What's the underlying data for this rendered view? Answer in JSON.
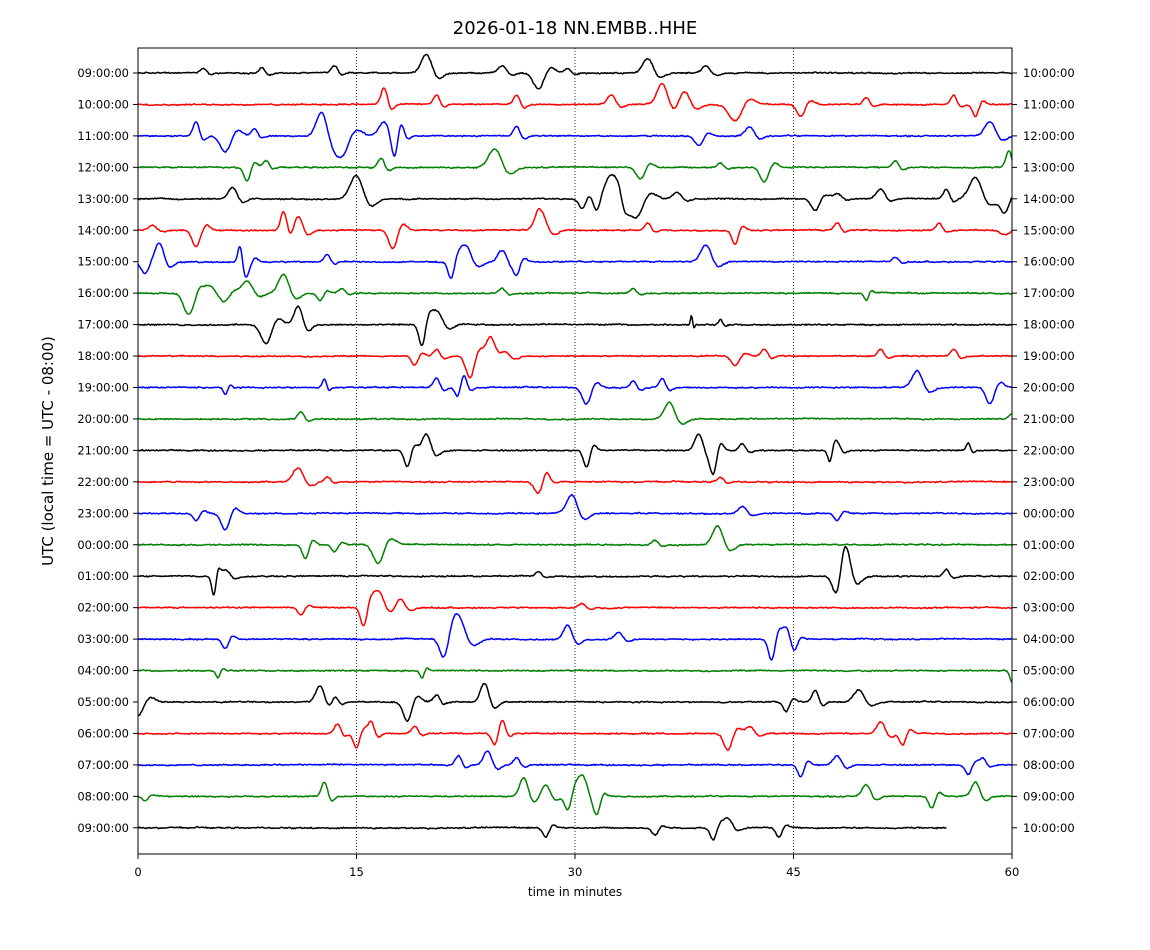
{
  "chart_data": {
    "type": "line",
    "title": "2026-01-18 NN.EMBB..HHE",
    "xlabel": "time in minutes",
    "ylabel": "UTC (local time = UTC - 08:00)",
    "xlim": [
      0,
      60
    ],
    "x_ticks": [
      "0",
      "15",
      "30",
      "45",
      "60"
    ],
    "x_tick_values": [
      0,
      15,
      30,
      45,
      60
    ],
    "vertical_gridlines_at_minutes": [
      15,
      30,
      45
    ],
    "grid": "dotted vertical lines at 15, 30, 45 minutes",
    "colors": [
      "#000000",
      "#ff0000",
      "#0000ff",
      "#008000"
    ],
    "left_labels": [
      "09:00:00",
      "10:00:00",
      "11:00:00",
      "12:00:00",
      "13:00:00",
      "14:00:00",
      "15:00:00",
      "16:00:00",
      "17:00:00",
      "18:00:00",
      "19:00:00",
      "20:00:00",
      "21:00:00",
      "22:00:00",
      "23:00:00",
      "00:00:00",
      "01:00:00",
      "02:00:00",
      "03:00:00",
      "04:00:00",
      "05:00:00",
      "06:00:00",
      "07:00:00",
      "08:00:00",
      "09:00:00"
    ],
    "right_labels": [
      "10:00:00",
      "11:00:00",
      "12:00:00",
      "13:00:00",
      "14:00:00",
      "15:00:00",
      "16:00:00",
      "17:00:00",
      "18:00:00",
      "19:00:00",
      "20:00:00",
      "21:00:00",
      "22:00:00",
      "23:00:00",
      "00:00:00",
      "01:00:00",
      "02:00:00",
      "03:00:00",
      "04:00:00",
      "05:00:00",
      "06:00:00",
      "07:00:00",
      "08:00:00",
      "09:00:00",
      "10:00:00"
    ],
    "last_trace_end_minute": 55.5,
    "events_description": "per-trace notable deflections as [minute, relative amplitude (+ up), width in minutes]",
    "trace_events": [
      [
        [
          4.5,
          0.2,
          0.3
        ],
        [
          8.5,
          0.25,
          0.3
        ],
        [
          13.5,
          0.3,
          0.3
        ],
        [
          19.8,
          0.8,
          0.5
        ],
        [
          25,
          0.3,
          0.4
        ],
        [
          27.5,
          -0.7,
          0.5
        ],
        [
          29.5,
          0.2,
          0.3
        ],
        [
          35,
          0.6,
          0.5
        ],
        [
          39,
          0.3,
          0.4
        ]
      ],
      [
        [
          16.9,
          0.7,
          0.3
        ],
        [
          20.5,
          0.4,
          0.3
        ],
        [
          26,
          0.4,
          0.3
        ],
        [
          32.5,
          0.4,
          0.4
        ],
        [
          36,
          0.9,
          0.5
        ],
        [
          37.5,
          0.6,
          0.5
        ],
        [
          41,
          -0.7,
          0.6
        ],
        [
          45.5,
          -0.5,
          0.4
        ],
        [
          50,
          0.3,
          0.3
        ],
        [
          56,
          0.4,
          0.3
        ],
        [
          57.5,
          -0.5,
          0.3
        ]
      ],
      [
        [
          4,
          0.6,
          0.3
        ],
        [
          6,
          -0.7,
          0.5
        ],
        [
          8,
          0.3,
          0.3
        ],
        [
          12.6,
          1.0,
          0.5
        ],
        [
          14,
          -0.8,
          0.6
        ],
        [
          16.9,
          0.6,
          0.5
        ],
        [
          17.6,
          -0.8,
          0.3
        ],
        [
          18,
          0.4,
          0.3
        ],
        [
          26,
          0.4,
          0.3
        ],
        [
          38.5,
          -0.4,
          0.4
        ],
        [
          42,
          0.4,
          0.4
        ],
        [
          58.5,
          0.6,
          0.5
        ]
      ],
      [
        [
          7.5,
          -0.6,
          0.3
        ],
        [
          8.8,
          0.3,
          0.3
        ],
        [
          16.7,
          0.4,
          0.3
        ],
        [
          24.5,
          0.8,
          0.6
        ],
        [
          34.5,
          -0.5,
          0.4
        ],
        [
          40,
          0.2,
          0.3
        ],
        [
          43,
          -0.6,
          0.4
        ],
        [
          52,
          0.3,
          0.3
        ],
        [
          59.8,
          0.7,
          0.3
        ]
      ],
      [
        [
          6.5,
          0.5,
          0.4
        ],
        [
          15,
          1.0,
          0.6
        ],
        [
          30.5,
          -0.4,
          0.3
        ],
        [
          31.5,
          -0.5,
          0.3
        ],
        [
          32.5,
          1.0,
          0.5
        ],
        [
          33,
          0.5,
          0.3
        ],
        [
          34.2,
          -0.8,
          0.6
        ],
        [
          37,
          0.3,
          0.4
        ],
        [
          46.5,
          -0.5,
          0.4
        ],
        [
          48,
          0.2,
          0.4
        ],
        [
          51,
          0.4,
          0.4
        ],
        [
          55.5,
          0.4,
          0.3
        ],
        [
          57.5,
          0.9,
          0.6
        ],
        [
          59.5,
          -0.6,
          0.4
        ]
      ],
      [
        [
          1,
          0.2,
          0.4
        ],
        [
          4,
          -0.7,
          0.4
        ],
        [
          10,
          0.8,
          0.3
        ],
        [
          11,
          0.6,
          0.4
        ],
        [
          17.5,
          -0.8,
          0.4
        ],
        [
          27.5,
          0.8,
          0.4
        ],
        [
          28,
          0.5,
          0.4
        ],
        [
          35,
          0.3,
          0.3
        ],
        [
          41,
          -0.6,
          0.3
        ],
        [
          48,
          0.3,
          0.3
        ],
        [
          55,
          0.3,
          0.3
        ],
        [
          59.5,
          -0.2,
          0.5
        ]
      ],
      [
        [
          0.5,
          -0.5,
          0.4
        ],
        [
          1.5,
          0.7,
          0.4
        ],
        [
          7,
          0.7,
          0.2
        ],
        [
          7.5,
          -0.5,
          0.3
        ],
        [
          13,
          0.3,
          0.3
        ],
        [
          21.5,
          -0.7,
          0.3
        ],
        [
          22.5,
          0.7,
          0.5
        ],
        [
          25,
          0.5,
          0.4
        ],
        [
          26,
          -0.5,
          0.3
        ],
        [
          39,
          0.7,
          0.5
        ],
        [
          52,
          0.2,
          0.3
        ]
      ],
      [
        [
          3.5,
          -0.9,
          0.5
        ],
        [
          5,
          0.3,
          0.4
        ],
        [
          6,
          -0.3,
          0.4
        ],
        [
          7.5,
          0.5,
          0.5
        ],
        [
          10,
          0.8,
          0.5
        ],
        [
          12.5,
          -0.3,
          0.3
        ],
        [
          14,
          0.2,
          0.3
        ],
        [
          25,
          0.2,
          0.3
        ],
        [
          34,
          0.2,
          0.3
        ],
        [
          50,
          -0.3,
          0.2
        ]
      ],
      [
        [
          8.8,
          -0.8,
          0.5
        ],
        [
          11,
          0.8,
          0.4
        ],
        [
          19.5,
          -0.9,
          0.3
        ],
        [
          20.5,
          0.6,
          0.5
        ],
        [
          38,
          0.4,
          0.1
        ],
        [
          40,
          0.2,
          0.2
        ]
      ],
      [
        [
          19,
          -0.4,
          0.3
        ],
        [
          20.5,
          0.3,
          0.3
        ],
        [
          22.8,
          -0.9,
          0.4
        ],
        [
          24.2,
          0.8,
          0.4
        ],
        [
          25,
          0.4,
          0.5
        ],
        [
          41,
          -0.4,
          0.4
        ],
        [
          43,
          0.3,
          0.3
        ],
        [
          51,
          0.3,
          0.3
        ],
        [
          56,
          0.3,
          0.3
        ]
      ],
      [
        [
          6,
          -0.3,
          0.2
        ],
        [
          12.8,
          0.4,
          0.2
        ],
        [
          20.5,
          0.4,
          0.3
        ],
        [
          22,
          -0.5,
          0.3
        ],
        [
          22.3,
          0.5,
          0.3
        ],
        [
          30.8,
          -0.7,
          0.4
        ],
        [
          34,
          0.3,
          0.3
        ],
        [
          36,
          0.4,
          0.3
        ],
        [
          53.5,
          0.7,
          0.5
        ],
        [
          58.5,
          -0.7,
          0.4
        ]
      ],
      [
        [
          11.2,
          0.3,
          0.3
        ],
        [
          36.5,
          0.7,
          0.5
        ],
        [
          60,
          0.2,
          0.3
        ]
      ],
      [
        [
          18.5,
          -0.7,
          0.3
        ],
        [
          19.8,
          0.7,
          0.4
        ],
        [
          30.8,
          -0.7,
          0.3
        ],
        [
          38.5,
          0.7,
          0.4
        ],
        [
          39.5,
          -0.9,
          0.3
        ],
        [
          41.5,
          0.3,
          0.3
        ],
        [
          47.5,
          -0.5,
          0.2
        ],
        [
          48,
          0.3,
          0.3
        ],
        [
          57,
          0.3,
          0.2
        ]
      ],
      [
        [
          11,
          0.6,
          0.5
        ],
        [
          13,
          0.2,
          0.3
        ],
        [
          27.5,
          -0.5,
          0.4
        ],
        [
          28,
          0.3,
          0.3
        ],
        [
          40,
          0.2,
          0.3
        ]
      ],
      [
        [
          4,
          -0.3,
          0.3
        ],
        [
          6,
          -0.7,
          0.4
        ],
        [
          29.8,
          0.8,
          0.5
        ],
        [
          41.5,
          0.3,
          0.4
        ],
        [
          48,
          -0.3,
          0.3
        ]
      ],
      [
        [
          11.5,
          -0.6,
          0.3
        ],
        [
          13.5,
          -0.3,
          0.3
        ],
        [
          16.5,
          -0.8,
          0.5
        ],
        [
          35.5,
          0.2,
          0.3
        ],
        [
          39.8,
          0.8,
          0.5
        ]
      ],
      [
        [
          5.2,
          -0.8,
          0.2
        ],
        [
          6,
          0.3,
          0.4
        ],
        [
          27.5,
          0.2,
          0.3
        ],
        [
          48,
          -1.0,
          0.4
        ],
        [
          48.5,
          1.1,
          0.5
        ],
        [
          55.5,
          0.3,
          0.3
        ]
      ],
      [
        [
          11.2,
          -0.3,
          0.3
        ],
        [
          15.5,
          -0.8,
          0.3
        ],
        [
          16.5,
          0.7,
          0.5
        ],
        [
          18,
          0.4,
          0.4
        ],
        [
          30.5,
          0.2,
          0.3
        ]
      ],
      [
        [
          6,
          -0.4,
          0.3
        ],
        [
          21,
          -0.8,
          0.4
        ],
        [
          22,
          0.9,
          0.6
        ],
        [
          29.5,
          0.6,
          0.4
        ],
        [
          33,
          0.3,
          0.4
        ],
        [
          43.5,
          -0.9,
          0.3
        ],
        [
          44.5,
          0.5,
          0.4
        ],
        [
          45,
          -0.4,
          0.3
        ]
      ],
      [
        [
          5.5,
          -0.3,
          0.2
        ],
        [
          19.5,
          -0.3,
          0.2
        ],
        [
          60,
          -0.5,
          0.2
        ]
      ],
      [
        [
          0,
          -0.6,
          0.5
        ],
        [
          12.5,
          0.7,
          0.4
        ],
        [
          13.5,
          0.3,
          0.3
        ],
        [
          18.5,
          -0.8,
          0.4
        ],
        [
          20.5,
          0.3,
          0.3
        ],
        [
          23.8,
          0.8,
          0.4
        ],
        [
          44.5,
          -0.4,
          0.3
        ],
        [
          46.5,
          0.5,
          0.3
        ],
        [
          49.5,
          0.5,
          0.5
        ]
      ],
      [
        [
          13.7,
          0.4,
          0.3
        ],
        [
          15,
          -0.6,
          0.3
        ],
        [
          16,
          0.5,
          0.3
        ],
        [
          19,
          0.3,
          0.3
        ],
        [
          24.5,
          -0.5,
          0.3
        ],
        [
          25,
          0.4,
          0.3
        ],
        [
          40.5,
          -0.7,
          0.4
        ],
        [
          42,
          0.3,
          0.4
        ],
        [
          51,
          0.5,
          0.4
        ],
        [
          52.5,
          -0.5,
          0.3
        ]
      ],
      [
        [
          22,
          0.4,
          0.3
        ],
        [
          24,
          0.6,
          0.4
        ],
        [
          26,
          0.3,
          0.3
        ],
        [
          45.5,
          -0.5,
          0.3
        ],
        [
          48,
          0.4,
          0.4
        ],
        [
          57,
          -0.4,
          0.3
        ],
        [
          58,
          0.3,
          0.3
        ]
      ],
      [
        [
          0.5,
          -0.2,
          0.3
        ],
        [
          12.8,
          0.6,
          0.3
        ],
        [
          26.5,
          0.8,
          0.4
        ],
        [
          28,
          0.5,
          0.4
        ],
        [
          29.5,
          -0.6,
          0.3
        ],
        [
          30.5,
          0.9,
          0.5
        ],
        [
          31.5,
          -0.5,
          0.3
        ],
        [
          50,
          0.5,
          0.4
        ],
        [
          54.5,
          -0.5,
          0.3
        ],
        [
          57.5,
          0.6,
          0.4
        ]
      ],
      [
        [
          28,
          -0.4,
          0.3
        ],
        [
          35.5,
          -0.3,
          0.3
        ],
        [
          39.5,
          -0.5,
          0.3
        ],
        [
          40.5,
          0.4,
          0.4
        ],
        [
          44,
          -0.4,
          0.3
        ]
      ]
    ]
  }
}
